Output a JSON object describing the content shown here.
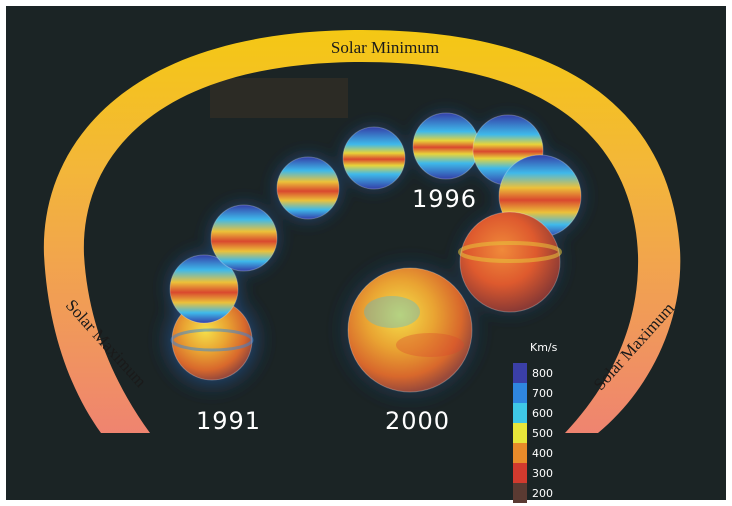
{
  "labels": {
    "top": "Solar Minimum",
    "left": "Solar Maximum",
    "right": "Solar Maximum"
  },
  "years": {
    "y1991": "1991",
    "y1996": "1996",
    "y2000": "2000"
  },
  "colorbar": {
    "unit": "Km/s",
    "ticks": [
      "800",
      "700",
      "600",
      "500",
      "400",
      "300",
      "200"
    ],
    "colors": [
      "#3b3fa8",
      "#2f86e0",
      "#3fc7e6",
      "#e7e63a",
      "#e88b2a",
      "#d23a2e",
      "#5a3a32"
    ]
  },
  "colors": {
    "background": "#1b2425",
    "arc_top": "#f3c419",
    "arc_bottom": "#f08c6c"
  }
}
